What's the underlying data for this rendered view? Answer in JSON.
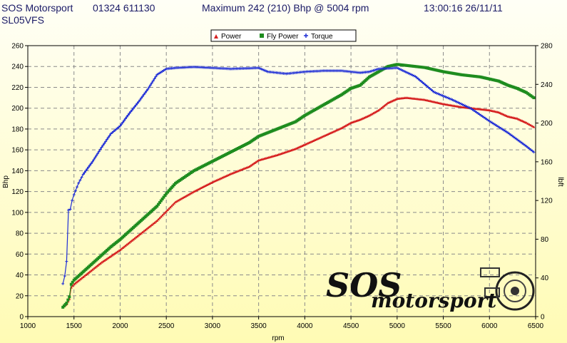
{
  "header": {
    "company": "SOS Motorsport",
    "phone": "01324 611130",
    "maximum": "Maximum 242 (210) Bhp @ 5004 rpm",
    "datetime": "13:00:16 26/11/11",
    "registration": "SL05VFS"
  },
  "logo": {
    "main": "SOS",
    "sub": "motorsport",
    "icon": "turbocharger-icon"
  },
  "colors": {
    "power": "#d62020",
    "fly_power": "#1e8c1e",
    "torque": "#1f2ed6",
    "grid": "#8a8a8a",
    "background_top": "#fffff6",
    "background_bottom": "#fffbb4"
  },
  "chart_data": {
    "type": "line",
    "xlabel": "rpm",
    "ylabel": "Bhp",
    "y2label": "lbft",
    "xlim": [
      1000,
      6500
    ],
    "ylim": [
      0,
      260
    ],
    "y2lim": [
      0,
      280
    ],
    "x_ticks": [
      "1000",
      "1500",
      "2000",
      "2500",
      "3000",
      "3500",
      "4000",
      "4500",
      "5000",
      "5500",
      "6000",
      "6500"
    ],
    "y_ticks": [
      "0",
      "20",
      "40",
      "60",
      "80",
      "100",
      "120",
      "140",
      "160",
      "180",
      "200",
      "220",
      "240",
      "260"
    ],
    "y2_ticks": [
      "0",
      "40",
      "80",
      "120",
      "160",
      "200",
      "240",
      "280"
    ],
    "grid": true,
    "legend_position": "top",
    "series": [
      {
        "name": "Power",
        "axis": "left",
        "color": "#d62020",
        "marker": "triangle",
        "x": [
          1380,
          1420,
          1450,
          1470,
          1500,
          1600,
          1700,
          1800,
          1900,
          2000,
          2100,
          2200,
          2300,
          2400,
          2500,
          2600,
          2800,
          3000,
          3200,
          3400,
          3500,
          3700,
          3900,
          4000,
          4200,
          4400,
          4500,
          4600,
          4700,
          4800,
          4900,
          5000,
          5100,
          5300,
          5500,
          5700,
          5900,
          6000,
          6100,
          6200,
          6300,
          6400,
          6480
        ],
        "y": [
          9,
          12,
          17,
          28,
          31,
          38,
          45,
          52,
          58,
          64,
          71,
          78,
          85,
          92,
          101,
          110,
          120,
          129,
          137,
          144,
          150,
          155,
          161,
          165,
          173,
          181,
          186,
          189,
          193,
          198,
          205,
          209,
          210,
          208,
          204,
          201,
          199,
          198,
          196,
          192,
          190,
          186,
          182
        ]
      },
      {
        "name": "Fly Power",
        "axis": "left",
        "color": "#1e8c1e",
        "marker": "square",
        "x": [
          1380,
          1420,
          1450,
          1470,
          1500,
          1600,
          1700,
          1800,
          1900,
          2000,
          2100,
          2200,
          2300,
          2400,
          2500,
          2600,
          2800,
          3000,
          3200,
          3400,
          3500,
          3700,
          3900,
          4000,
          4200,
          4400,
          4500,
          4600,
          4700,
          4800,
          4900,
          5000,
          5100,
          5300,
          5500,
          5700,
          5900,
          6000,
          6100,
          6200,
          6300,
          6400,
          6480
        ],
        "y": [
          9,
          13,
          19,
          31,
          35,
          43,
          51,
          59,
          67,
          74,
          82,
          90,
          98,
          106,
          118,
          128,
          140,
          149,
          158,
          167,
          173,
          180,
          187,
          193,
          203,
          213,
          219,
          222,
          230,
          235,
          240,
          242,
          241,
          239,
          235,
          232,
          230,
          228,
          226,
          222,
          219,
          215,
          210
        ]
      },
      {
        "name": "Torque",
        "axis": "right",
        "color": "#1f2ed6",
        "marker": "plus",
        "x": [
          1380,
          1400,
          1420,
          1440,
          1460,
          1480,
          1500,
          1550,
          1600,
          1700,
          1800,
          1900,
          2000,
          2100,
          2200,
          2300,
          2400,
          2500,
          2600,
          2800,
          3000,
          3200,
          3500,
          3600,
          3800,
          4000,
          4200,
          4400,
          4600,
          4700,
          4800,
          5000,
          5200,
          5400,
          5600,
          5800,
          6000,
          6200,
          6400,
          6480
        ],
        "y": [
          34,
          42,
          57,
          110,
          111,
          120,
          126,
          138,
          147,
          160,
          175,
          189,
          197,
          210,
          222,
          235,
          250,
          256,
          257,
          258,
          257,
          256,
          257,
          253,
          251,
          253,
          254,
          254,
          252,
          253,
          256,
          257,
          248,
          232,
          224,
          215,
          202,
          190,
          176,
          170
        ]
      }
    ]
  }
}
